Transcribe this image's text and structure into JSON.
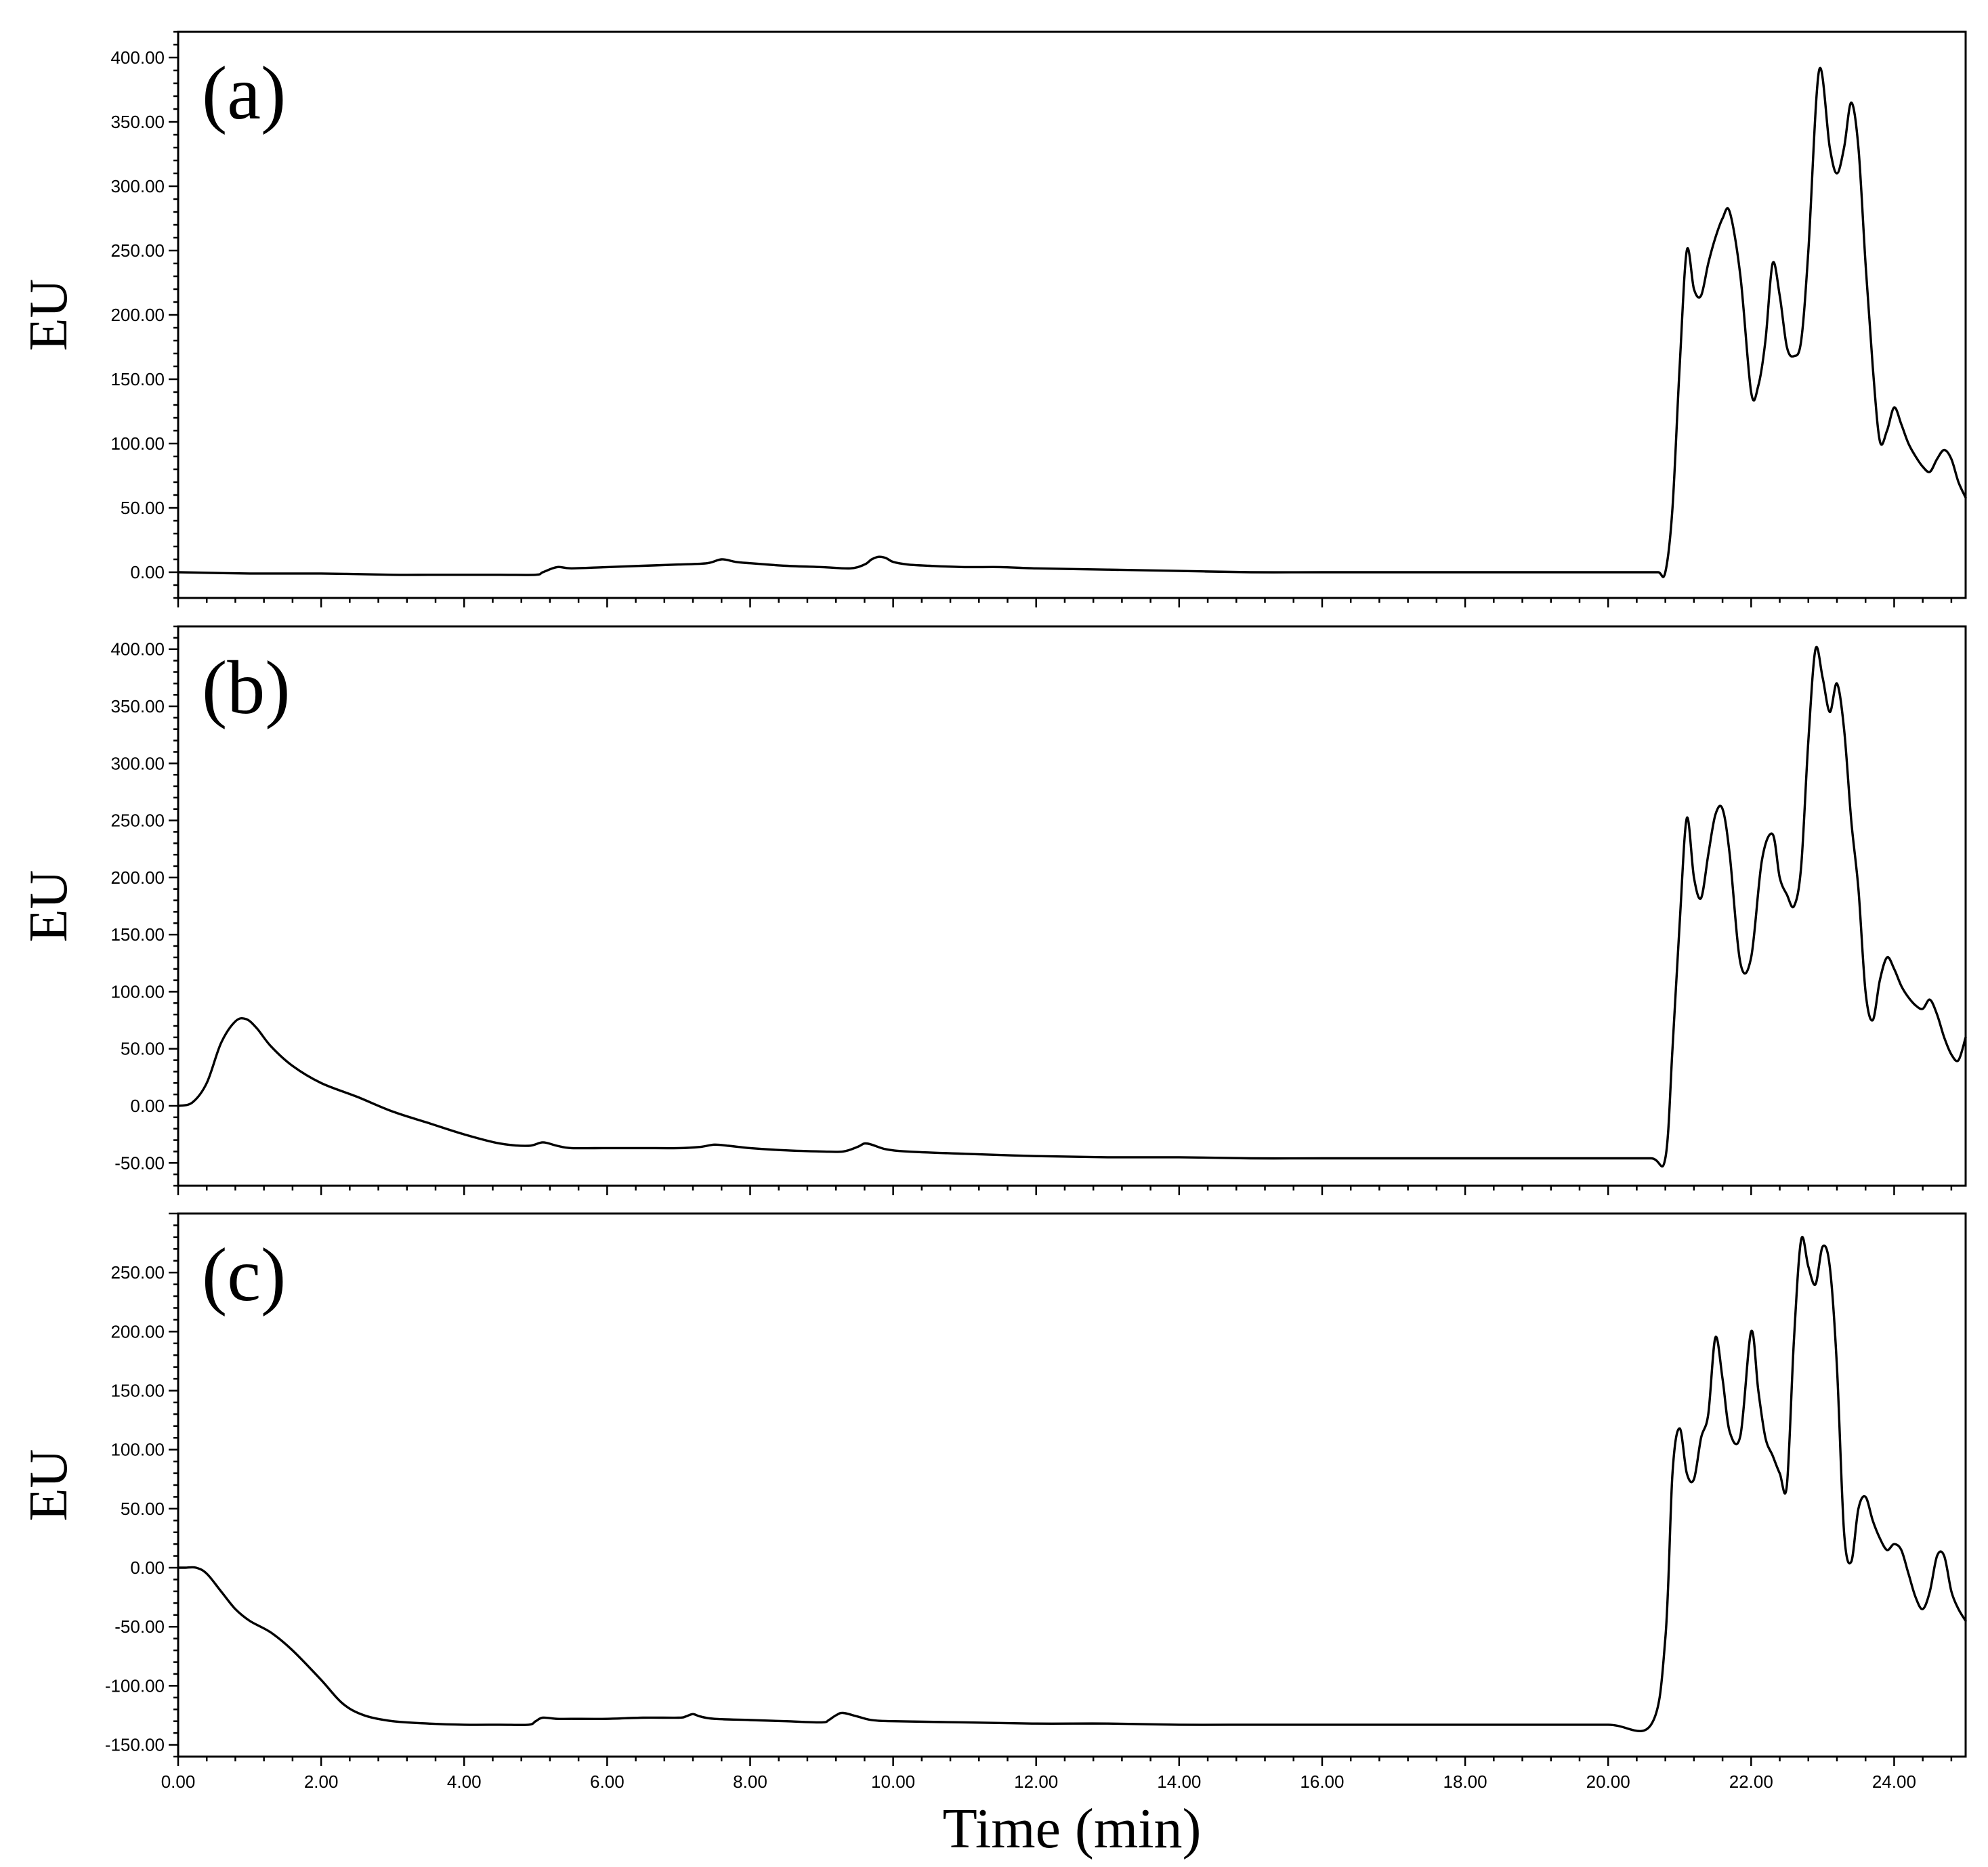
{
  "chart_data": [
    {
      "type": "line",
      "panel_label": "(a)",
      "ylabel": "EU",
      "xlim": [
        0,
        25
      ],
      "ylim": [
        -20,
        420
      ],
      "yticks": [
        0,
        50,
        100,
        150,
        200,
        250,
        300,
        350,
        400
      ],
      "ytick_labels": [
        "0.00",
        "50.00",
        "100.00",
        "150.00",
        "200.00",
        "250.00",
        "300.00",
        "350.00",
        "400.00"
      ],
      "x_tick_labels_visible": false,
      "series": [
        {
          "x": [
            0,
            1,
            2,
            3,
            3.5,
            4,
            4.5,
            5.0,
            5.1,
            5.3,
            5.5,
            6.0,
            6.5,
            7.0,
            7.4,
            7.6,
            7.8,
            8.0,
            8.5,
            9.0,
            9.4,
            9.6,
            9.7,
            9.8,
            9.9,
            10.0,
            10.2,
            10.5,
            11.0,
            11.5,
            12.0,
            13.0,
            14.0,
            15.0,
            16.0,
            17.0,
            18.0,
            19.0,
            20.0,
            20.5,
            20.7,
            20.8,
            20.9,
            21.0,
            21.1,
            21.2,
            21.3,
            21.4,
            21.5,
            21.6,
            21.7,
            21.85,
            22.0,
            22.1,
            22.2,
            22.3,
            22.4,
            22.5,
            22.6,
            22.7,
            22.8,
            22.95,
            23.1,
            23.2,
            23.3,
            23.4,
            23.5,
            23.6,
            23.7,
            23.8,
            23.9,
            24.0,
            24.1,
            24.2,
            24.3,
            24.4,
            24.5,
            24.6,
            24.7,
            24.8,
            24.9,
            25.0
          ],
          "y": [
            0,
            -1,
            -1,
            -2,
            -2,
            -2,
            -2,
            -2,
            0,
            4,
            3,
            4,
            5,
            6,
            7,
            10,
            8,
            7,
            5,
            4,
            3,
            6,
            10,
            12,
            11,
            8,
            6,
            5,
            4,
            4,
            3,
            2,
            1,
            0,
            0,
            0,
            0,
            0,
            0,
            0,
            0,
            0,
            50,
            160,
            250,
            220,
            215,
            240,
            260,
            275,
            280,
            230,
            140,
            145,
            180,
            240,
            215,
            175,
            168,
            180,
            250,
            390,
            330,
            310,
            330,
            365,
            330,
            240,
            160,
            102,
            110,
            128,
            115,
            100,
            90,
            82,
            78,
            88,
            95,
            88,
            70,
            58
          ],
          "color": "#000000"
        }
      ]
    },
    {
      "type": "line",
      "panel_label": "(b)",
      "ylabel": "EU",
      "xlim": [
        0,
        25
      ],
      "ylim": [
        -70,
        420
      ],
      "yticks": [
        -50,
        0,
        50,
        100,
        150,
        200,
        250,
        300,
        350,
        400
      ],
      "ytick_labels": [
        "-50.00",
        "0.00",
        "50.00",
        "100.00",
        "150.00",
        "200.00",
        "250.00",
        "300.00",
        "350.00",
        "400.00"
      ],
      "x_tick_labels_visible": false,
      "series": [
        {
          "x": [
            0,
            0.2,
            0.4,
            0.6,
            0.8,
            0.95,
            1.1,
            1.3,
            1.6,
            2.0,
            2.5,
            3.0,
            3.5,
            4.0,
            4.5,
            4.9,
            5.1,
            5.3,
            5.5,
            6.0,
            6.5,
            7.0,
            7.3,
            7.5,
            7.7,
            8.0,
            8.5,
            9.0,
            9.3,
            9.5,
            9.6,
            9.7,
            9.9,
            10.2,
            11.0,
            12.0,
            13.0,
            14.0,
            15.0,
            16.0,
            17.0,
            18.0,
            19.0,
            20.0,
            20.6,
            20.8,
            20.9,
            21.0,
            21.1,
            21.2,
            21.3,
            21.4,
            21.5,
            21.6,
            21.7,
            21.85,
            22.0,
            22.15,
            22.3,
            22.4,
            22.5,
            22.6,
            22.7,
            22.8,
            22.9,
            23.0,
            23.1,
            23.2,
            23.3,
            23.4,
            23.5,
            23.6,
            23.7,
            23.8,
            23.9,
            24.0,
            24.1,
            24.2,
            24.3,
            24.4,
            24.5,
            24.6,
            24.7,
            24.8,
            24.9,
            25.0
          ],
          "y": [
            0,
            3,
            20,
            55,
            74,
            76,
            68,
            52,
            35,
            20,
            8,
            -5,
            -15,
            -25,
            -33,
            -35,
            -32,
            -35,
            -37,
            -37,
            -37,
            -37,
            -36,
            -34,
            -35,
            -37,
            -39,
            -40,
            -40,
            -36,
            -33,
            -34,
            -38,
            -40,
            -42,
            -44,
            -45,
            -45,
            -46,
            -46,
            -46,
            -46,
            -46,
            -46,
            -46,
            -46,
            50,
            160,
            252,
            200,
            182,
            220,
            255,
            260,
            220,
            125,
            130,
            215,
            238,
            200,
            185,
            175,
            210,
            320,
            400,
            375,
            345,
            370,
            330,
            250,
            190,
            100,
            75,
            110,
            130,
            120,
            105,
            95,
            88,
            85,
            93,
            80,
            60,
            45,
            40,
            60
          ],
          "color": "#000000"
        }
      ]
    },
    {
      "type": "line",
      "panel_label": "(c)",
      "ylabel": "EU",
      "xlim": [
        0,
        25
      ],
      "ylim": [
        -160,
        300
      ],
      "yticks": [
        -150,
        -100,
        -50,
        0,
        50,
        100,
        150,
        200,
        250
      ],
      "ytick_labels": [
        "-150.00",
        "-100.00",
        "-50.00",
        "0.00",
        "50.00",
        "100.00",
        "150.00",
        "200.00",
        "250.00"
      ],
      "xticks": [
        0,
        2,
        4,
        6,
        8,
        10,
        12,
        14,
        16,
        18,
        20,
        22,
        24
      ],
      "xtick_labels": [
        "0.00",
        "2.00",
        "4.00",
        "6.00",
        "8.00",
        "10.00",
        "12.00",
        "14.00",
        "16.00",
        "18.00",
        "20.00",
        "22.00",
        "24.00"
      ],
      "xlabel": "Time (min)",
      "x_tick_labels_visible": true,
      "series": [
        {
          "x": [
            0,
            0.1,
            0.25,
            0.4,
            0.6,
            0.8,
            1.0,
            1.3,
            1.6,
            2.0,
            2.3,
            2.6,
            3.0,
            3.5,
            4.0,
            4.5,
            4.9,
            5.0,
            5.1,
            5.3,
            5.5,
            6.0,
            6.5,
            7.0,
            7.1,
            7.2,
            7.3,
            7.5,
            8.0,
            8.5,
            9.0,
            9.1,
            9.2,
            9.3,
            9.5,
            9.7,
            10.0,
            11.0,
            12.0,
            13.0,
            14.0,
            15.0,
            16.0,
            17.0,
            18.0,
            19.0,
            20.0,
            20.6,
            20.8,
            20.9,
            21.0,
            21.1,
            21.2,
            21.3,
            21.4,
            21.5,
            21.6,
            21.7,
            21.85,
            22.0,
            22.1,
            22.2,
            22.3,
            22.4,
            22.5,
            22.6,
            22.7,
            22.8,
            22.9,
            23.0,
            23.1,
            23.2,
            23.3,
            23.4,
            23.5,
            23.6,
            23.7,
            23.8,
            23.9,
            24.0,
            24.1,
            24.2,
            24.3,
            24.4,
            24.5,
            24.6,
            24.7,
            24.8,
            24.9,
            25.0
          ],
          "y": [
            0,
            0,
            0,
            -5,
            -20,
            -35,
            -45,
            -55,
            -70,
            -95,
            -115,
            -125,
            -130,
            -132,
            -133,
            -133,
            -133,
            -130,
            -127,
            -128,
            -128,
            -128,
            -127,
            -127,
            -126,
            -124,
            -126,
            -128,
            -129,
            -130,
            -131,
            -129,
            -125,
            -123,
            -126,
            -129,
            -130,
            -131,
            -132,
            -132,
            -133,
            -133,
            -133,
            -133,
            -133,
            -133,
            -133,
            -133,
            -60,
            80,
            118,
            80,
            75,
            110,
            130,
            195,
            160,
            115,
            112,
            200,
            150,
            110,
            95,
            80,
            70,
            195,
            278,
            255,
            240,
            272,
            255,
            170,
            30,
            5,
            50,
            60,
            40,
            25,
            15,
            20,
            15,
            -5,
            -25,
            -35,
            -20,
            10,
            10,
            -20,
            -35,
            -45
          ],
          "color": "#000000"
        }
      ]
    }
  ]
}
